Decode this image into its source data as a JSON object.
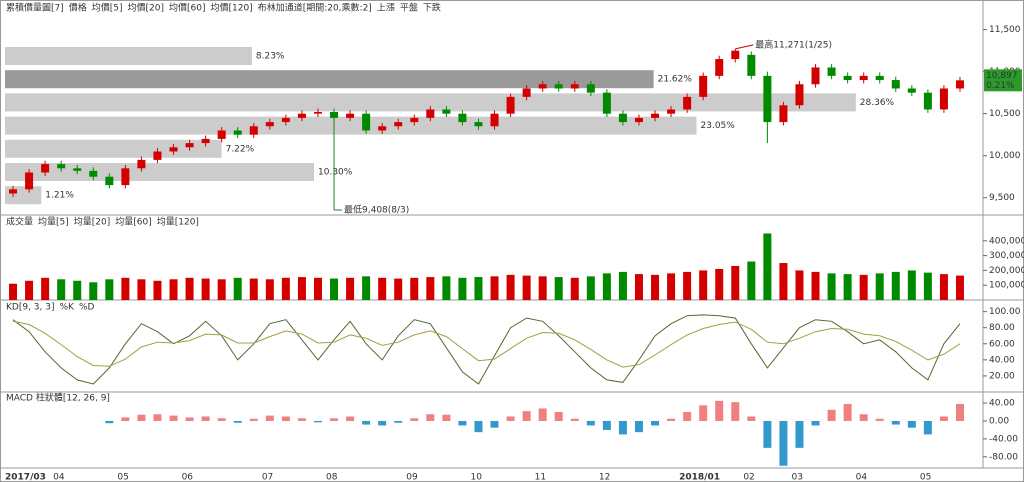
{
  "chart_data": [
    {
      "type": "candlestick",
      "header": [
        {
          "name": "累積價量圖[7]",
          "color": "#222"
        },
        {
          "name": "價格",
          "color": "#222"
        },
        {
          "name": "均價[5]",
          "color": "#808000"
        },
        {
          "name": "均價[20]",
          "color": "#3a7fb0"
        },
        {
          "name": "均價[60]",
          "color": "#208020"
        },
        {
          "name": "均價[120]",
          "color": "#7a2a7a"
        },
        {
          "name": "布林加通道[期間:20,乘數:2]",
          "color": "#a09030"
        },
        {
          "name": "上漲",
          "color": "#d00000"
        },
        {
          "name": "平盤",
          "color": "#208020"
        },
        {
          "name": "下跌",
          "color": "#208020"
        }
      ],
      "categories": [
        "2017/03",
        null,
        null,
        "04",
        null,
        null,
        null,
        "05",
        null,
        null,
        null,
        "06",
        null,
        null,
        null,
        null,
        "07",
        null,
        null,
        null,
        "08",
        null,
        null,
        null,
        null,
        "09",
        null,
        null,
        null,
        "10",
        null,
        null,
        null,
        "11",
        null,
        null,
        null,
        "12",
        null,
        null,
        null,
        null,
        "2018/01",
        null,
        null,
        null,
        "02",
        null,
        null,
        "03",
        null,
        null,
        null,
        "04",
        null,
        null,
        null,
        "05",
        null,
        null
      ],
      "ohlc": {
        "open": [
          9550,
          9600,
          9800,
          9900,
          9850,
          9820,
          9750,
          9650,
          9850,
          9950,
          10050,
          10100,
          10150,
          10200,
          10300,
          10250,
          10350,
          10400,
          10450,
          10500,
          10520,
          10450,
          10500,
          10300,
          10350,
          10400,
          10450,
          10550,
          10500,
          10400,
          10350,
          10500,
          10700,
          10800,
          10850,
          10800,
          10850,
          10750,
          10500,
          10400,
          10450,
          10500,
          10550,
          10700,
          10950,
          11150,
          11200,
          10950,
          10400,
          10600,
          10850,
          11050,
          10950,
          10900,
          10950,
          10900,
          10800,
          10750,
          10550,
          10800
        ],
        "high": [
          9640,
          9840,
          9940,
          9940,
          9890,
          9860,
          9790,
          9890,
          9990,
          10090,
          10140,
          10190,
          10240,
          10340,
          10340,
          10390,
          10440,
          10490,
          10540,
          10560,
          10560,
          10540,
          10540,
          10390,
          10440,
          10490,
          10590,
          10590,
          10540,
          10440,
          10540,
          10740,
          10840,
          10890,
          10890,
          10890,
          10890,
          10790,
          10540,
          10490,
          10540,
          10590,
          10740,
          10990,
          11190,
          11271,
          11240,
          11000,
          10640,
          10890,
          11090,
          11090,
          10990,
          10990,
          10990,
          10940,
          10840,
          10790,
          10840,
          10937
        ],
        "low": [
          9510,
          9560,
          9760,
          9810,
          9780,
          9710,
          9610,
          9610,
          9810,
          9910,
          10010,
          10060,
          10110,
          10160,
          10210,
          10210,
          10310,
          10360,
          10410,
          10460,
          10410,
          10410,
          10260,
          10260,
          10310,
          10360,
          10410,
          10460,
          10360,
          10310,
          10310,
          10460,
          10660,
          10760,
          10760,
          10760,
          10710,
          10460,
          10360,
          10360,
          10410,
          10460,
          10510,
          10660,
          10910,
          11110,
          10910,
          10150,
          10360,
          10560,
          10810,
          10910,
          10860,
          10860,
          10860,
          10760,
          10710,
          10510,
          10510,
          10760
        ],
        "close": [
          9600,
          9800,
          9900,
          9850,
          9820,
          9750,
          9650,
          9850,
          9950,
          10050,
          10100,
          10150,
          10200,
          10300,
          10250,
          10350,
          10400,
          10450,
          10500,
          10520,
          10450,
          10500,
          10300,
          10350,
          10400,
          10450,
          10550,
          10500,
          10400,
          10350,
          10500,
          10700,
          10800,
          10850,
          10800,
          10850,
          10750,
          10500,
          10400,
          10450,
          10500,
          10550,
          10700,
          10950,
          11150,
          11250,
          10950,
          10400,
          10600,
          10850,
          11050,
          10950,
          10900,
          10950,
          10900,
          10800,
          10750,
          10550,
          10800,
          10897
        ]
      },
      "up_color": "#d40000",
      "down_color": "#008a00",
      "ylim": [
        9330,
        11710
      ],
      "yticks": [
        {
          "value": 9500,
          "label": "9,500"
        },
        {
          "value": 10000,
          "label": "10,000"
        },
        {
          "value": 10500,
          "label": "10,500"
        },
        {
          "value": 11000,
          "label": "11,000"
        },
        {
          "value": 11500,
          "label": "11,500"
        }
      ],
      "profile": {
        "values": [
          8.23,
          21.62,
          28.36,
          23.05,
          7.22,
          10.3,
          1.21
        ],
        "value_labels": [
          "8.23%",
          "21.62%",
          "28.36%",
          "23.05%",
          "7.22%",
          "10.30%",
          "1.21%"
        ],
        "colors": [
          "#cccccc",
          "#9a9a9a",
          "#cccccc",
          "#cccccc",
          "#cccccc",
          "#cccccc",
          "#cccccc"
        ]
      },
      "annotations": [
        "最高11,271(1/25)",
        "最低9,408(8/3)"
      ],
      "last_price": {
        "value": 10897,
        "label": "10,897"
      },
      "change": {
        "value": 0.21,
        "label": "0.21%"
      }
    },
    {
      "type": "bar",
      "header": [
        {
          "name": "成交量",
          "color": "#222"
        },
        {
          "name": "均量[5]",
          "color": "#808000"
        },
        {
          "name": "均量[20]",
          "color": "#3a7fb0"
        },
        {
          "name": "均量[60]",
          "color": "#208020"
        },
        {
          "name": "均量[120]",
          "color": "#7a2a7a"
        }
      ],
      "values": [
        110000,
        130000,
        150000,
        140000,
        130000,
        120000,
        140000,
        150000,
        140000,
        130000,
        140000,
        150000,
        145000,
        140000,
        150000,
        145000,
        140000,
        150000,
        155000,
        150000,
        145000,
        150000,
        160000,
        150000,
        145000,
        150000,
        155000,
        160000,
        150000,
        155000,
        160000,
        170000,
        165000,
        160000,
        155000,
        150000,
        160000,
        180000,
        190000,
        175000,
        170000,
        180000,
        190000,
        200000,
        210000,
        230000,
        260000,
        450000,
        250000,
        200000,
        190000,
        180000,
        175000,
        170000,
        180000,
        190000,
        200000,
        185000,
        175000,
        165000
      ],
      "ylim": [
        0,
        480000
      ],
      "yticks": [
        {
          "value": 100000,
          "label": "100,000"
        },
        {
          "value": 200000,
          "label": "200,000"
        },
        {
          "value": 300000,
          "label": "300,000"
        },
        {
          "value": 400000,
          "label": "400,000"
        }
      ]
    },
    {
      "type": "line",
      "header": [
        {
          "name": "KD[9, 3, 3]",
          "color": "#222"
        },
        {
          "name": "%K",
          "color": "#4d6b2d"
        },
        {
          "name": "%D",
          "color": "#a0a040"
        }
      ],
      "series": [
        {
          "name": "%K",
          "color": "#4d6b2d",
          "values": [
            90,
            75,
            50,
            30,
            15,
            10,
            30,
            60,
            85,
            75,
            60,
            70,
            88,
            70,
            40,
            60,
            85,
            90,
            65,
            40,
            65,
            88,
            60,
            40,
            70,
            90,
            85,
            55,
            25,
            10,
            45,
            80,
            92,
            88,
            70,
            50,
            30,
            15,
            12,
            40,
            70,
            85,
            95,
            96,
            95,
            92,
            60,
            30,
            55,
            80,
            90,
            88,
            75,
            60,
            65,
            50,
            30,
            15,
            60,
            85
          ]
        },
        {
          "name": "%D",
          "color": "#a0a040",
          "values": [
            88,
            84,
            73,
            59,
            44,
            33,
            32,
            41,
            56,
            62,
            61,
            64,
            72,
            71,
            61,
            61,
            69,
            76,
            72,
            61,
            62,
            71,
            67,
            58,
            62,
            71,
            76,
            69,
            54,
            39,
            41,
            54,
            67,
            74,
            73,
            65,
            53,
            40,
            31,
            34,
            46,
            59,
            71,
            79,
            84,
            87,
            78,
            62,
            60,
            67,
            75,
            79,
            78,
            72,
            70,
            63,
            52,
            40,
            47,
            60
          ]
        }
      ],
      "ylim": [
        0,
        112
      ],
      "yticks": [
        {
          "value": 20,
          "label": "20.00"
        },
        {
          "value": 40,
          "label": "40.00"
        },
        {
          "value": 60,
          "label": "60.00"
        },
        {
          "value": 80,
          "label": "80.00"
        },
        {
          "value": 100,
          "label": "100.00"
        }
      ]
    },
    {
      "type": "bar",
      "header": [
        {
          "name": "MACD 柱狀體[12, 26, 9]",
          "color": "#7a2a7a"
        }
      ],
      "values": [
        null,
        null,
        null,
        null,
        null,
        null,
        -5,
        8,
        14,
        15,
        12,
        8,
        10,
        6,
        -4,
        5,
        12,
        10,
        6,
        -3,
        6,
        10,
        -8,
        -10,
        -4,
        6,
        15,
        14,
        -10,
        -25,
        -15,
        10,
        22,
        28,
        20,
        5,
        -10,
        -20,
        -30,
        -25,
        -10,
        5,
        20,
        35,
        45,
        42,
        10,
        -60,
        -100,
        -60,
        -10,
        25,
        38,
        15,
        5,
        -8,
        -15,
        -30,
        10,
        38
      ],
      "pos_color": "#f08080",
      "neg_color": "#3399cc",
      "ylim": [
        -105,
        58
      ],
      "yticks": [
        {
          "value": -80,
          "label": "-80.00"
        },
        {
          "value": -40,
          "label": "-40.00"
        },
        {
          "value": 0,
          "label": "0.00"
        },
        {
          "value": 40,
          "label": "40.00"
        }
      ]
    }
  ]
}
